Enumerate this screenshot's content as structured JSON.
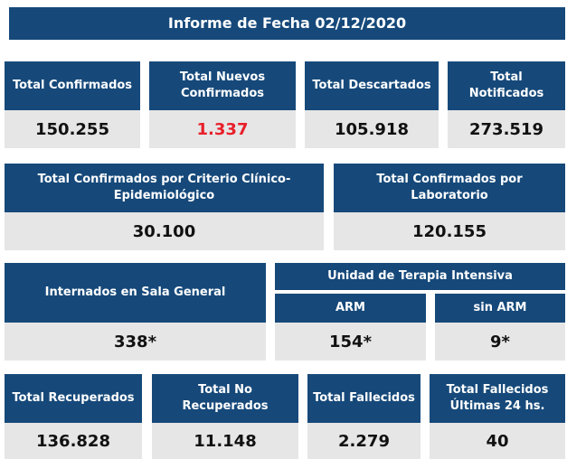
{
  "report": {
    "title": "Informe de Fecha 02/12/2020",
    "colors": {
      "header_bg": "#16497a",
      "value_bg": "#e6e6e6",
      "highlight": "#e8202a"
    }
  },
  "row1": [
    {
      "label": "Total Confirmados",
      "value": "150.255"
    },
    {
      "label": "Total Nuevos Confirmados",
      "value": "1.337"
    },
    {
      "label": "Total Descartados",
      "value": "105.918"
    },
    {
      "label": "Total Notificados",
      "value": "273.519"
    }
  ],
  "row2": [
    {
      "label": "Total Confirmados por Criterio Clínico-Epidemiológico",
      "value": "30.100"
    },
    {
      "label": "Total Confirmados por Laboratorio",
      "value": "120.155"
    }
  ],
  "row3": {
    "internados": {
      "label": "Internados en Sala General",
      "value": "338*"
    },
    "uti": {
      "label": "Unidad de Terapia Intensiva",
      "arm": {
        "label": "ARM",
        "value": "154*"
      },
      "sin_arm": {
        "label": "sin ARM",
        "value": "9*"
      }
    }
  },
  "row4": [
    {
      "label": "Total Recuperados",
      "value": "136.828"
    },
    {
      "label": "Total No Recuperados",
      "value": "11.148"
    },
    {
      "label": "Total Fallecidos",
      "value": "2.279"
    },
    {
      "label": "Total Fallecidos Últimas 24 hs.",
      "value": "40"
    }
  ]
}
